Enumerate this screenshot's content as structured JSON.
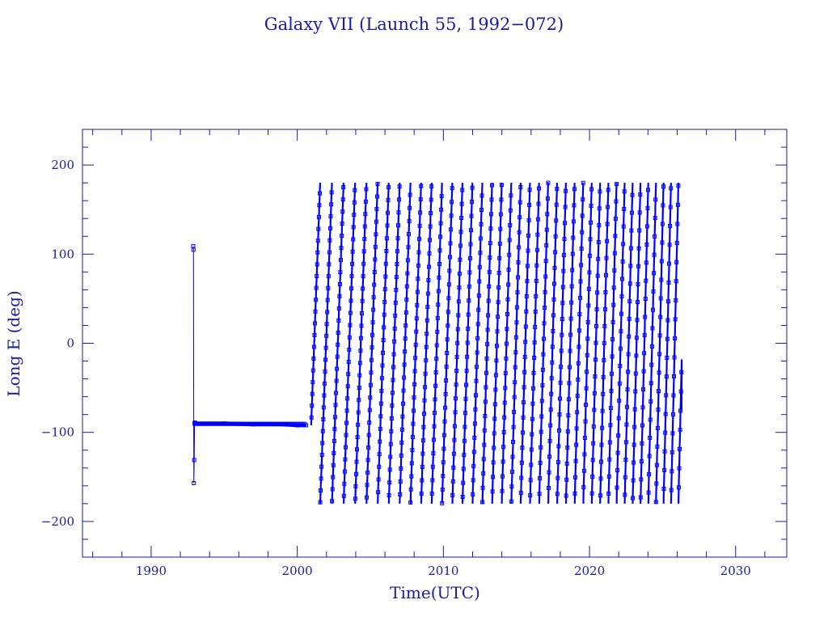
{
  "chart_data": {
    "type": "line",
    "title": "Galaxy VII (Launch 55, 1992−072)",
    "xlabel": "Time(UTC)",
    "ylabel": "Long E (deg)",
    "xlim": [
      1985.3,
      2033.5
    ],
    "ylim": [
      -240,
      240
    ],
    "x_ticks": [
      1990,
      2000,
      2010,
      2020,
      2030
    ],
    "x_tick_labels": [
      "1990",
      "2000",
      "2010",
      "2020",
      "2030"
    ],
    "y_ticks": [
      200,
      100,
      0,
      -100,
      -200
    ],
    "y_tick_labels": [
      "200",
      "100",
      "0",
      "−100",
      "−200"
    ],
    "grid": false,
    "legend": "none",
    "marker": "open-square",
    "series": [
      {
        "segments": [
          {
            "description": "launch transfer",
            "x": [
              1992.88,
              1992.9,
              1992.92,
              1992.95,
              1992.97,
              1993.0
            ],
            "y": [
              109,
              105,
              -157,
              -131,
              -90,
              -89
            ]
          },
          {
            "description": "station kept near 91 W",
            "x": [
              1993.0,
              1995.0,
              1997.0,
              1999.0,
              2000.0,
              2000.6
            ],
            "y": [
              -90,
              -90,
              -91,
              -91,
              -92,
              -92
            ]
          },
          {
            "description": "eastward drift, full longitude cycles",
            "drift": {
              "start_year": 2000.95,
              "end_year": 2026.3,
              "cycle_years_first": 0.82,
              "cycle_years_last": 0.5,
              "long_max": 180,
              "long_min": -180,
              "end_long": -75
            }
          }
        ]
      }
    ],
    "colors": {
      "axes": "#1a1aa0",
      "data": "#0000ff",
      "text": "#1a1aa0"
    }
  }
}
